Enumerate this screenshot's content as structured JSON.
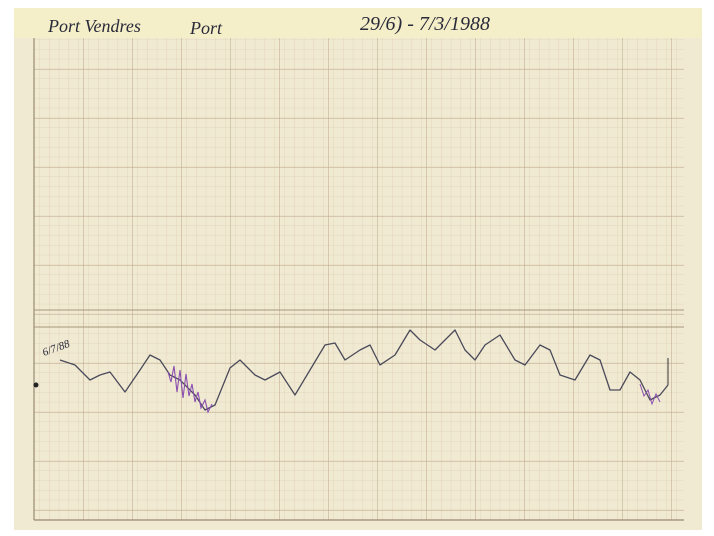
{
  "header": {
    "place": "Port Vendres",
    "port": "Port",
    "dates": "29/6) - 7/3/1988"
  },
  "margin_note": "6/7/88"
}
